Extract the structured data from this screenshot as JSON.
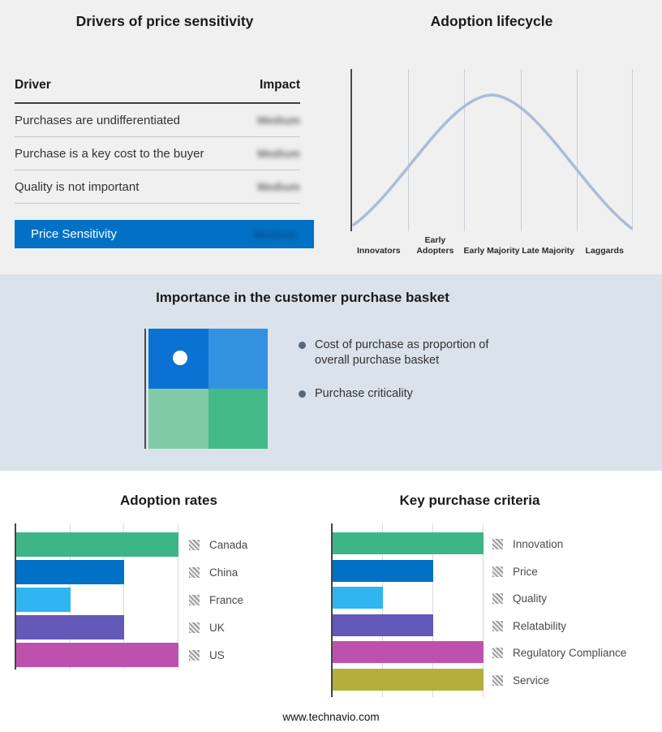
{
  "drivers_panel": {
    "title": "Drivers of price sensitivity",
    "columns": {
      "driver": "Driver",
      "impact": "Impact"
    },
    "rows": [
      {
        "driver": "Purchases are undifferentiated",
        "impact": "Medium"
      },
      {
        "driver": "Purchase is a key cost to the buyer",
        "impact": "Medium"
      },
      {
        "driver": "Quality is not important",
        "impact": "Medium"
      }
    ],
    "summary_row": {
      "label": "Price Sensitivity",
      "impact": "Medium",
      "bg": "#0071c5"
    },
    "impact_values_blurred": true
  },
  "basket_panel": {
    "title": "Importance in the customer purchase basket",
    "bullets": [
      "Cost of purchase as proportion of overall purchase basket",
      "Purchase criticality"
    ],
    "quadrant_colors": [
      "#0a72d2",
      "#3391e2",
      "#80cba6",
      "#44b988"
    ],
    "background": "#dae2eb"
  },
  "footer": {
    "website": "www.technavio.com"
  },
  "chart_data": [
    {
      "type": "line",
      "title": "Adoption lifecycle",
      "categories": [
        "Innovators",
        "Early Adopters",
        "Early Majority",
        "Late Majority",
        "Laggards"
      ],
      "shape": "bell curve peaking at Early Majority",
      "y_values_relative": [
        0.05,
        0.55,
        1.0,
        0.55,
        0.05
      ],
      "curve_color": "#a9bdd6",
      "grid": true
    },
    {
      "type": "bar",
      "title": "Adoption rates",
      "orientation": "horizontal",
      "categories": [
        "Canada",
        "China",
        "France",
        "UK",
        "US"
      ],
      "values": [
        3,
        2,
        1,
        2,
        3
      ],
      "colors": [
        "#3db586",
        "#0071c5",
        "#2fb5f0",
        "#6458b8",
        "#bf51ae"
      ],
      "xlim": [
        0,
        3
      ],
      "grid": true,
      "legend_position": "right"
    },
    {
      "type": "bar",
      "title": "Key purchase criteria",
      "orientation": "horizontal",
      "categories": [
        "Innovation",
        "Price",
        "Quality",
        "Relatability",
        "Regulatory Compliance",
        "Service"
      ],
      "values": [
        3,
        2,
        1,
        2,
        3,
        3
      ],
      "colors": [
        "#3db586",
        "#0071c5",
        "#2fb5f0",
        "#6458b8",
        "#bf51ae",
        "#b4af3b"
      ],
      "xlim": [
        0,
        3
      ],
      "grid": true,
      "legend_position": "right"
    }
  ]
}
